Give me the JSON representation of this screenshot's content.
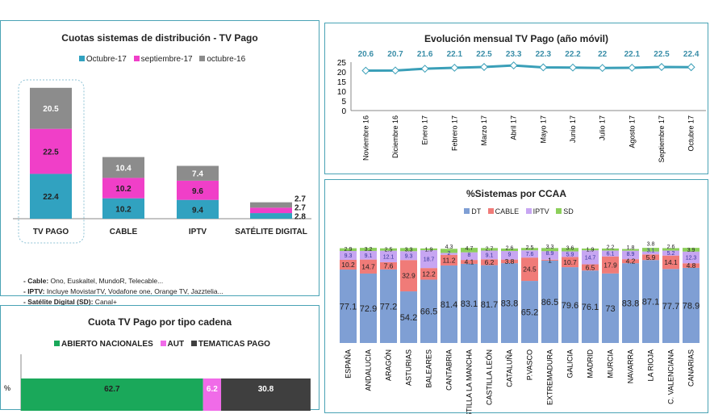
{
  "chart_data": [
    {
      "type": "bar",
      "stacked": true,
      "title": "Cuotas sistemas de distribución - TV Pago",
      "categories": [
        "TV PAGO",
        "CABLE",
        "IPTV",
        "SATÉLITE DIGITAL"
      ],
      "series": [
        {
          "name": "Octubre-17",
          "color": "#31a2c0",
          "values": [
            22.4,
            10.2,
            9.4,
            2.8
          ]
        },
        {
          "name": "septiembre-17",
          "color": "#f03fc8",
          "values": [
            22.5,
            10.2,
            9.6,
            2.7
          ]
        },
        {
          "name": "octubre-16",
          "color": "#8c8c8c",
          "values": [
            20.5,
            10.4,
            7.4,
            2.7
          ]
        }
      ],
      "legend": "top",
      "notes": [
        {
          "label": "- Cable:",
          "text": " Ono, Euskaltel, MundoR, Telecable..."
        },
        {
          "label": "- IPTV:",
          "text": " Incluye MovistarTV, Vodafone one, Orange TV, Jazztelia..."
        },
        {
          "label": "- Satélite Digital (SD):",
          "text": " Canal+"
        }
      ]
    },
    {
      "type": "line",
      "title": "Evolución mensual TV Pago (año móvil)",
      "categories": [
        "Noviembre 16",
        "Diciembre 16",
        "Enero 17",
        "Febrero 17",
        "Marzo 17",
        "Abril 17",
        "Mayo 17",
        "Junio 17",
        "Julio 17",
        "Agosto 17",
        "Septiembre 17",
        "Octubre 17"
      ],
      "values": [
        20.6,
        20.7,
        21.6,
        22.1,
        22.5,
        23.3,
        22.3,
        22.2,
        22,
        22.1,
        22.5,
        22.4
      ],
      "ylim": [
        0,
        25
      ],
      "yticks": [
        0,
        5,
        10,
        15,
        20,
        25
      ],
      "color": "#3a9fb8"
    },
    {
      "type": "bar",
      "stacked": true,
      "title": "%Sistemas por CCAA",
      "legend": "top",
      "categories": [
        "ESPAÑA",
        "ANDALUCIA",
        "ARAGÓN",
        "ASTURIAS",
        "BALEARES",
        "CANTABRIA",
        "CASTILLA LA MANCHA",
        "CASTILLA LEÓN",
        "CATALUÑA",
        "P.VASCO",
        "EXTREMADURA",
        "GALICIA",
        "MADRID",
        "MURCIA",
        "NAVARRA",
        "LA RIOJA",
        "C. VALENCIANA",
        "CANARIAS"
      ],
      "series": [
        {
          "name": "DT",
          "color": "#7f9fd4",
          "values": [
            77.1,
            72.9,
            77.2,
            54.2,
            66.5,
            81.4,
            83.1,
            81.7,
            83.8,
            65.2,
            86.5,
            79.6,
            76.1,
            73,
            83.8,
            87.1,
            77.7,
            78.9
          ]
        },
        {
          "name": "CABLE",
          "color": "#f07b78",
          "values": [
            10.2,
            14.7,
            7.6,
            32.9,
            12.2,
            11.2,
            4.1,
            6.2,
            3.8,
            24.5,
            1,
            10.7,
            6.5,
            17.9,
            4.2,
            5.9,
            14.1,
            4.8
          ]
        },
        {
          "name": "IPTV",
          "color": "#c7a6f2",
          "values": [
            9.3,
            9.1,
            12.1,
            9.3,
            18.7,
            2,
            8,
            9.1,
            9,
            7.6,
            8.9,
            5.9,
            14.7,
            6.1,
            8.9,
            3.1,
            5.2,
            12.3
          ]
        },
        {
          "name": "SD",
          "color": "#8ccf5a",
          "values": [
            2.9,
            3.2,
            2.5,
            3.3,
            1.9,
            4.3,
            4.7,
            2.7,
            2.6,
            2.5,
            3.3,
            3.6,
            1.9,
            2.2,
            1.8,
            3.8,
            2.6,
            3.9
          ]
        }
      ]
    },
    {
      "type": "bar",
      "stacked": true,
      "orientation": "horizontal",
      "title": "Cuota TV Pago por tipo cadena",
      "legend": "top",
      "categories": [
        "%"
      ],
      "series": [
        {
          "name": "ABIERTO NACIONALES",
          "color": "#1aa85a",
          "values": [
            62.7
          ]
        },
        {
          "name": "AUT",
          "color": "#f06be8",
          "values": [
            6.2
          ]
        },
        {
          "name": "TEMATICAS PAGO",
          "color": "#3f3f3f",
          "values": [
            30.8
          ]
        }
      ]
    }
  ]
}
